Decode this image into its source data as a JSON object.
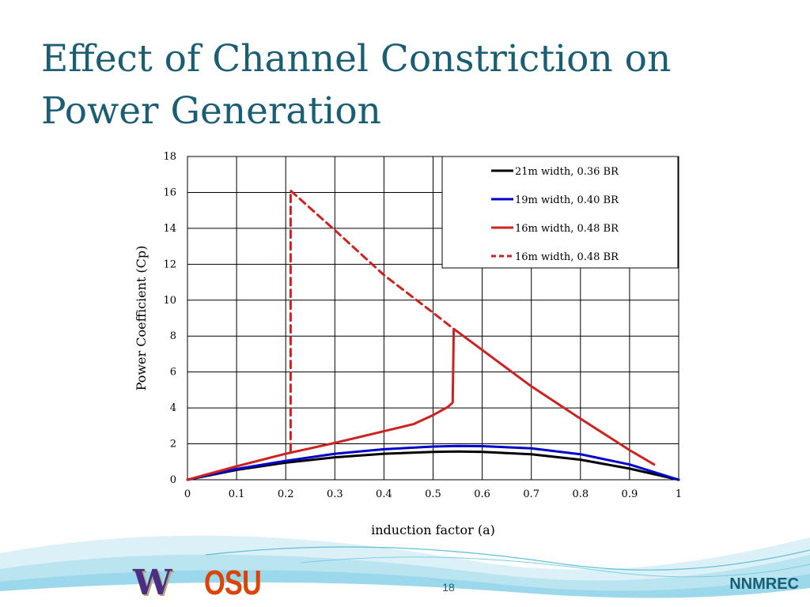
{
  "slide": {
    "title": "Effect of Channel Constriction on Power Generation",
    "page_number": "18",
    "brand": "NNMREC",
    "logos": {
      "uw": "W",
      "osu": "OSU"
    },
    "colors": {
      "title": "#1b5d72",
      "uw_purple": "#4b2e83",
      "uw_gold": "#b7a57a",
      "osu_orange": "#dc4405"
    }
  },
  "chart_data": {
    "type": "line",
    "xlabel": "induction factor (a)",
    "ylabel": "Power  Coefficient (Cp)",
    "xlim": [
      0,
      1
    ],
    "ylim": [
      0,
      18
    ],
    "xticks": [
      "0",
      "0.1",
      "0.2",
      "0.3",
      "0.4",
      "0.5",
      "0.6",
      "0.7",
      "0.8",
      "0.9",
      "1"
    ],
    "yticks": [
      "0",
      "2",
      "4",
      "6",
      "8",
      "10",
      "12",
      "14",
      "16",
      "18"
    ],
    "grid": true,
    "legend_position": "top-right",
    "series": [
      {
        "name": "21m width, 0.36 BR",
        "color": "#000000",
        "dash": false,
        "x": [
          0,
          0.1,
          0.2,
          0.3,
          0.4,
          0.5,
          0.55,
          0.6,
          0.7,
          0.8,
          0.9,
          1.0
        ],
        "y": [
          0,
          0.55,
          0.95,
          1.25,
          1.45,
          1.55,
          1.57,
          1.55,
          1.42,
          1.12,
          0.62,
          0
        ]
      },
      {
        "name": "19m width, 0.40 BR",
        "color": "#0000cc",
        "dash": false,
        "x": [
          0,
          0.1,
          0.2,
          0.3,
          0.4,
          0.5,
          0.55,
          0.6,
          0.7,
          0.8,
          0.9,
          1.0
        ],
        "y": [
          0,
          0.6,
          1.05,
          1.45,
          1.7,
          1.85,
          1.88,
          1.87,
          1.75,
          1.42,
          0.85,
          0
        ]
      },
      {
        "name": "16m width, 0.48 BR",
        "color": "#cc2222",
        "dash": false,
        "x": [
          0,
          0.1,
          0.2,
          0.3,
          0.4,
          0.46,
          0.5,
          0.53,
          0.54,
          0.541,
          0.542,
          0.7,
          0.8,
          0.9,
          0.95
        ],
        "y": [
          0,
          0.75,
          1.45,
          2.05,
          2.7,
          3.1,
          3.6,
          4.05,
          4.3,
          6.5,
          8.4,
          5.2,
          3.4,
          1.65,
          0.85
        ]
      },
      {
        "name": "16m width, 0.48 BR",
        "color": "#cc2222",
        "dash": true,
        "x": [
          0.21,
          0.21,
          0.3,
          0.4,
          0.5,
          0.542
        ],
        "y": [
          1.6,
          16.1,
          13.9,
          11.4,
          9.3,
          8.4
        ]
      }
    ]
  }
}
